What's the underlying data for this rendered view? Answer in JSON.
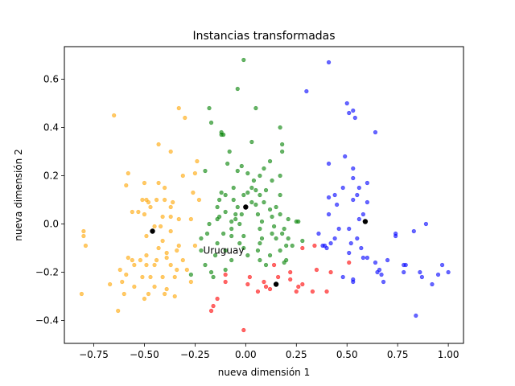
{
  "chart_data": {
    "type": "scatter",
    "title": "Instancias transformadas",
    "xlabel": "nueva dimensión 1",
    "ylabel": "nueva dimensión 2",
    "xlim": [
      -0.895,
      1.075
    ],
    "ylim": [
      -0.495,
      0.735
    ],
    "xticks": [
      -0.75,
      -0.5,
      -0.25,
      0.0,
      0.25,
      0.5,
      0.75,
      1.0
    ],
    "xtick_labels": [
      "−0.75",
      "−0.50",
      "−0.25",
      "0.00",
      "0.25",
      "0.50",
      "0.75",
      "1.00"
    ],
    "yticks": [
      -0.4,
      -0.2,
      0.0,
      0.2,
      0.4,
      0.6
    ],
    "ytick_labels": [
      "−0.4",
      "−0.2",
      "0.0",
      "0.2",
      "0.4",
      "0.6"
    ],
    "grid": false,
    "annotations": [
      {
        "text": "Uruguay",
        "x": -0.21,
        "y": -0.11
      }
    ],
    "series": [
      {
        "color": "#ffa500",
        "points": [
          [
            -0.65,
            0.45
          ],
          [
            -0.33,
            0.48
          ],
          [
            -0.3,
            0.44
          ],
          [
            -0.43,
            0.33
          ],
          [
            -0.37,
            0.3
          ],
          [
            -0.24,
            0.26
          ],
          [
            -0.58,
            0.21
          ],
          [
            -0.5,
            0.17
          ],
          [
            -0.43,
            0.17
          ],
          [
            -0.59,
            0.16
          ],
          [
            -0.25,
            0.21
          ],
          [
            -0.31,
            0.2
          ],
          [
            -0.4,
            0.15
          ],
          [
            -0.26,
            0.13
          ],
          [
            -0.49,
            0.1
          ],
          [
            -0.51,
            0.1
          ],
          [
            -0.48,
            0.09
          ],
          [
            -0.44,
            0.1
          ],
          [
            -0.4,
            0.1
          ],
          [
            -0.36,
            0.09
          ],
          [
            -0.23,
            0.1
          ],
          [
            -0.47,
            0.07
          ],
          [
            -0.37,
            0.07
          ],
          [
            -0.56,
            0.05
          ],
          [
            -0.53,
            0.05
          ],
          [
            -0.5,
            0.04
          ],
          [
            -0.41,
            0.03
          ],
          [
            -0.37,
            0.03
          ],
          [
            -0.33,
            0.02
          ],
          [
            -0.27,
            0.02
          ],
          [
            -0.42,
            -0.01
          ],
          [
            -0.45,
            -0.01
          ],
          [
            -0.37,
            -0.03
          ],
          [
            -0.8,
            -0.03
          ],
          [
            -0.8,
            -0.05
          ],
          [
            -0.79,
            -0.09
          ],
          [
            -0.49,
            -0.05
          ],
          [
            -0.41,
            -0.07
          ],
          [
            -0.33,
            -0.09
          ],
          [
            -0.25,
            -0.09
          ],
          [
            -0.43,
            -0.1
          ],
          [
            -0.39,
            -0.12
          ],
          [
            -0.34,
            -0.11
          ],
          [
            -0.49,
            -0.13
          ],
          [
            -0.58,
            -0.14
          ],
          [
            -0.56,
            -0.15
          ],
          [
            -0.52,
            -0.15
          ],
          [
            -0.44,
            -0.15
          ],
          [
            -0.39,
            -0.14
          ],
          [
            -0.31,
            -0.15
          ],
          [
            -0.55,
            -0.17
          ],
          [
            -0.49,
            -0.17
          ],
          [
            -0.45,
            -0.17
          ],
          [
            -0.37,
            -0.17
          ],
          [
            -0.34,
            -0.19
          ],
          [
            -0.29,
            -0.19
          ],
          [
            -0.62,
            -0.19
          ],
          [
            -0.59,
            -0.21
          ],
          [
            -0.51,
            -0.22
          ],
          [
            -0.47,
            -0.22
          ],
          [
            -0.41,
            -0.22
          ],
          [
            -0.35,
            -0.22
          ],
          [
            -0.27,
            -0.24
          ],
          [
            -0.61,
            -0.24
          ],
          [
            -0.67,
            -0.25
          ],
          [
            -0.55,
            -0.26
          ],
          [
            -0.45,
            -0.26
          ],
          [
            -0.39,
            -0.27
          ],
          [
            -0.48,
            -0.29
          ],
          [
            -0.4,
            -0.29
          ],
          [
            -0.5,
            -0.31
          ],
          [
            -0.6,
            -0.29
          ],
          [
            -0.35,
            -0.3
          ],
          [
            -0.81,
            -0.29
          ],
          [
            -0.63,
            -0.36
          ]
        ]
      },
      {
        "color": "#008000",
        "points": [
          [
            -0.01,
            0.68
          ],
          [
            -0.04,
            0.56
          ],
          [
            -0.18,
            0.48
          ],
          [
            0.05,
            0.48
          ],
          [
            -0.17,
            0.42
          ],
          [
            0.17,
            0.4
          ],
          [
            -0.12,
            0.38
          ],
          [
            0.03,
            0.34
          ],
          [
            0.18,
            0.33
          ],
          [
            0.18,
            0.3
          ],
          [
            -0.08,
            0.3
          ],
          [
            -0.12,
            0.37
          ],
          [
            -0.11,
            0.37
          ],
          [
            -0.09,
            0.25
          ],
          [
            0.12,
            0.26
          ],
          [
            -0.02,
            0.24
          ],
          [
            -0.04,
            0.22
          ],
          [
            -0.2,
            0.22
          ],
          [
            0.09,
            0.23
          ],
          [
            0.07,
            0.2
          ],
          [
            0.01,
            0.21
          ],
          [
            0.17,
            0.2
          ],
          [
            0.04,
            0.18
          ],
          [
            0.13,
            0.18
          ],
          [
            0.03,
            0.15
          ],
          [
            -0.06,
            0.15
          ],
          [
            -0.12,
            0.13
          ],
          [
            0.05,
            0.14
          ],
          [
            0.1,
            0.14
          ],
          [
            0.01,
            0.13
          ],
          [
            -0.01,
            0.12
          ],
          [
            0.07,
            0.12
          ],
          [
            -0.1,
            0.12
          ],
          [
            0.17,
            0.12
          ],
          [
            -0.13,
            0.1
          ],
          [
            -0.06,
            0.1
          ],
          [
            0.03,
            0.09
          ],
          [
            0.09,
            0.09
          ],
          [
            0.05,
            0.08
          ],
          [
            -0.14,
            0.07
          ],
          [
            -0.04,
            0.07
          ],
          [
            0.15,
            0.07
          ],
          [
            0.12,
            0.06
          ],
          [
            -0.1,
            0.05
          ],
          [
            0.06,
            0.04
          ],
          [
            -0.05,
            0.04
          ],
          [
            -0.02,
            0.04
          ],
          [
            0.17,
            0.04
          ],
          [
            -0.13,
            0.03
          ],
          [
            -0.05,
            0.02
          ],
          [
            0.13,
            0.03
          ],
          [
            0.21,
            0.02
          ],
          [
            -0.14,
            0.02
          ],
          [
            -0.07,
            0.01
          ],
          [
            0.08,
            0.01
          ],
          [
            0.25,
            0.01
          ],
          [
            0.26,
            0.01
          ],
          [
            -0.18,
            0.0
          ],
          [
            -0.07,
            -0.02
          ],
          [
            -0.03,
            0.0
          ],
          [
            0.07,
            -0.02
          ],
          [
            0.14,
            -0.01
          ],
          [
            0.19,
            -0.02
          ],
          [
            -0.19,
            -0.04
          ],
          [
            -0.11,
            -0.04
          ],
          [
            0.13,
            -0.04
          ],
          [
            0.18,
            -0.04
          ],
          [
            -0.22,
            -0.06
          ],
          [
            -0.07,
            -0.05
          ],
          [
            -0.01,
            -0.05
          ],
          [
            0.08,
            -0.06
          ],
          [
            0.15,
            -0.06
          ],
          [
            0.21,
            -0.06
          ],
          [
            0.28,
            -0.07
          ],
          [
            -0.14,
            -0.08
          ],
          [
            -0.03,
            -0.08
          ],
          [
            0.07,
            -0.08
          ],
          [
            0.2,
            -0.09
          ],
          [
            -0.22,
            -0.11
          ],
          [
            -0.1,
            -0.11
          ],
          [
            0.06,
            -0.11
          ],
          [
            0.17,
            -0.11
          ],
          [
            0.23,
            -0.09
          ],
          [
            -0.15,
            -0.13
          ],
          [
            0.01,
            -0.13
          ],
          [
            0.12,
            -0.13
          ],
          [
            -0.2,
            -0.17
          ],
          [
            -0.07,
            -0.15
          ],
          [
            0.07,
            -0.15
          ],
          [
            0.19,
            -0.16
          ],
          [
            -0.1,
            -0.19
          ],
          [
            -0.17,
            -0.2
          ],
          [
            -0.27,
            -0.21
          ],
          [
            -0.16,
            -0.22
          ],
          [
            0.1,
            -0.17
          ],
          [
            -0.01,
            -0.1
          ],
          [
            0.2,
            -0.15
          ]
        ]
      },
      {
        "color": "#ff0000",
        "points": [
          [
            -0.01,
            -0.44
          ],
          [
            -0.17,
            -0.36
          ],
          [
            -0.16,
            -0.34
          ],
          [
            -0.14,
            -0.31
          ],
          [
            -0.1,
            -0.24
          ],
          [
            0.01,
            -0.25
          ],
          [
            0.09,
            -0.24
          ],
          [
            0.1,
            -0.26
          ],
          [
            0.06,
            -0.28
          ],
          [
            0.12,
            -0.27
          ],
          [
            0.22,
            -0.23
          ],
          [
            0.26,
            -0.26
          ],
          [
            0.22,
            -0.2
          ],
          [
            0.28,
            -0.25
          ],
          [
            0.33,
            -0.28
          ],
          [
            0.4,
            -0.28
          ],
          [
            0.35,
            -0.19
          ],
          [
            0.42,
            -0.2
          ],
          [
            0.28,
            -0.1
          ],
          [
            0.34,
            -0.09
          ],
          [
            0.51,
            -0.16
          ],
          [
            -0.1,
            -0.21
          ],
          [
            0.14,
            -0.17
          ],
          [
            0.02,
            -0.22
          ],
          [
            0.25,
            -0.28
          ],
          [
            0.16,
            -0.22
          ]
        ]
      },
      {
        "color": "#0000ff",
        "points": [
          [
            0.41,
            0.67
          ],
          [
            0.3,
            0.55
          ],
          [
            0.5,
            0.5
          ],
          [
            0.53,
            0.47
          ],
          [
            0.51,
            0.46
          ],
          [
            0.54,
            0.44
          ],
          [
            0.64,
            0.38
          ],
          [
            0.49,
            0.28
          ],
          [
            0.41,
            0.25
          ],
          [
            0.53,
            0.23
          ],
          [
            0.53,
            0.19
          ],
          [
            0.6,
            0.17
          ],
          [
            0.56,
            0.15
          ],
          [
            0.48,
            0.15
          ],
          [
            0.44,
            0.12
          ],
          [
            0.55,
            0.12
          ],
          [
            0.53,
            0.1
          ],
          [
            0.41,
            0.11
          ],
          [
            0.45,
            0.08
          ],
          [
            0.6,
            0.09
          ],
          [
            0.58,
            0.04
          ],
          [
            0.56,
            0.02
          ],
          [
            0.41,
            0.04
          ],
          [
            0.46,
            -0.02
          ],
          [
            0.36,
            -0.04
          ],
          [
            0.44,
            -0.06
          ],
          [
            0.52,
            -0.08
          ],
          [
            0.57,
            -0.1
          ],
          [
            0.51,
            -0.12
          ],
          [
            0.6,
            -0.14
          ],
          [
            0.64,
            -0.16
          ],
          [
            0.7,
            -0.15
          ],
          [
            0.78,
            -0.17
          ],
          [
            0.74,
            -0.05
          ],
          [
            0.74,
            -0.04
          ],
          [
            0.89,
            0.0
          ],
          [
            0.83,
            -0.03
          ],
          [
            0.78,
            -0.2
          ],
          [
            0.79,
            -0.17
          ],
          [
            0.86,
            -0.2
          ],
          [
            0.87,
            -0.22
          ],
          [
            0.65,
            -0.2
          ],
          [
            0.67,
            -0.21
          ],
          [
            0.68,
            -0.24
          ],
          [
            0.53,
            -0.23
          ],
          [
            0.53,
            -0.24
          ],
          [
            0.48,
            -0.22
          ],
          [
            0.38,
            -0.09
          ],
          [
            0.39,
            -0.09
          ],
          [
            0.4,
            -0.1
          ],
          [
            0.42,
            -0.08
          ],
          [
            0.51,
            -0.02
          ],
          [
            0.55,
            -0.06
          ],
          [
            0.84,
            -0.38
          ],
          [
            0.97,
            -0.17
          ],
          [
            0.95,
            -0.21
          ],
          [
            1.0,
            -0.2
          ],
          [
            0.92,
            -0.25
          ],
          [
            0.66,
            -0.19
          ],
          [
            0.58,
            -0.14
          ]
        ]
      },
      {
        "color": "#000000",
        "centroid": true,
        "points": [
          [
            -0.46,
            -0.03
          ],
          [
            0.0,
            0.07
          ],
          [
            0.15,
            -0.25
          ],
          [
            0.59,
            0.01
          ]
        ]
      }
    ]
  }
}
